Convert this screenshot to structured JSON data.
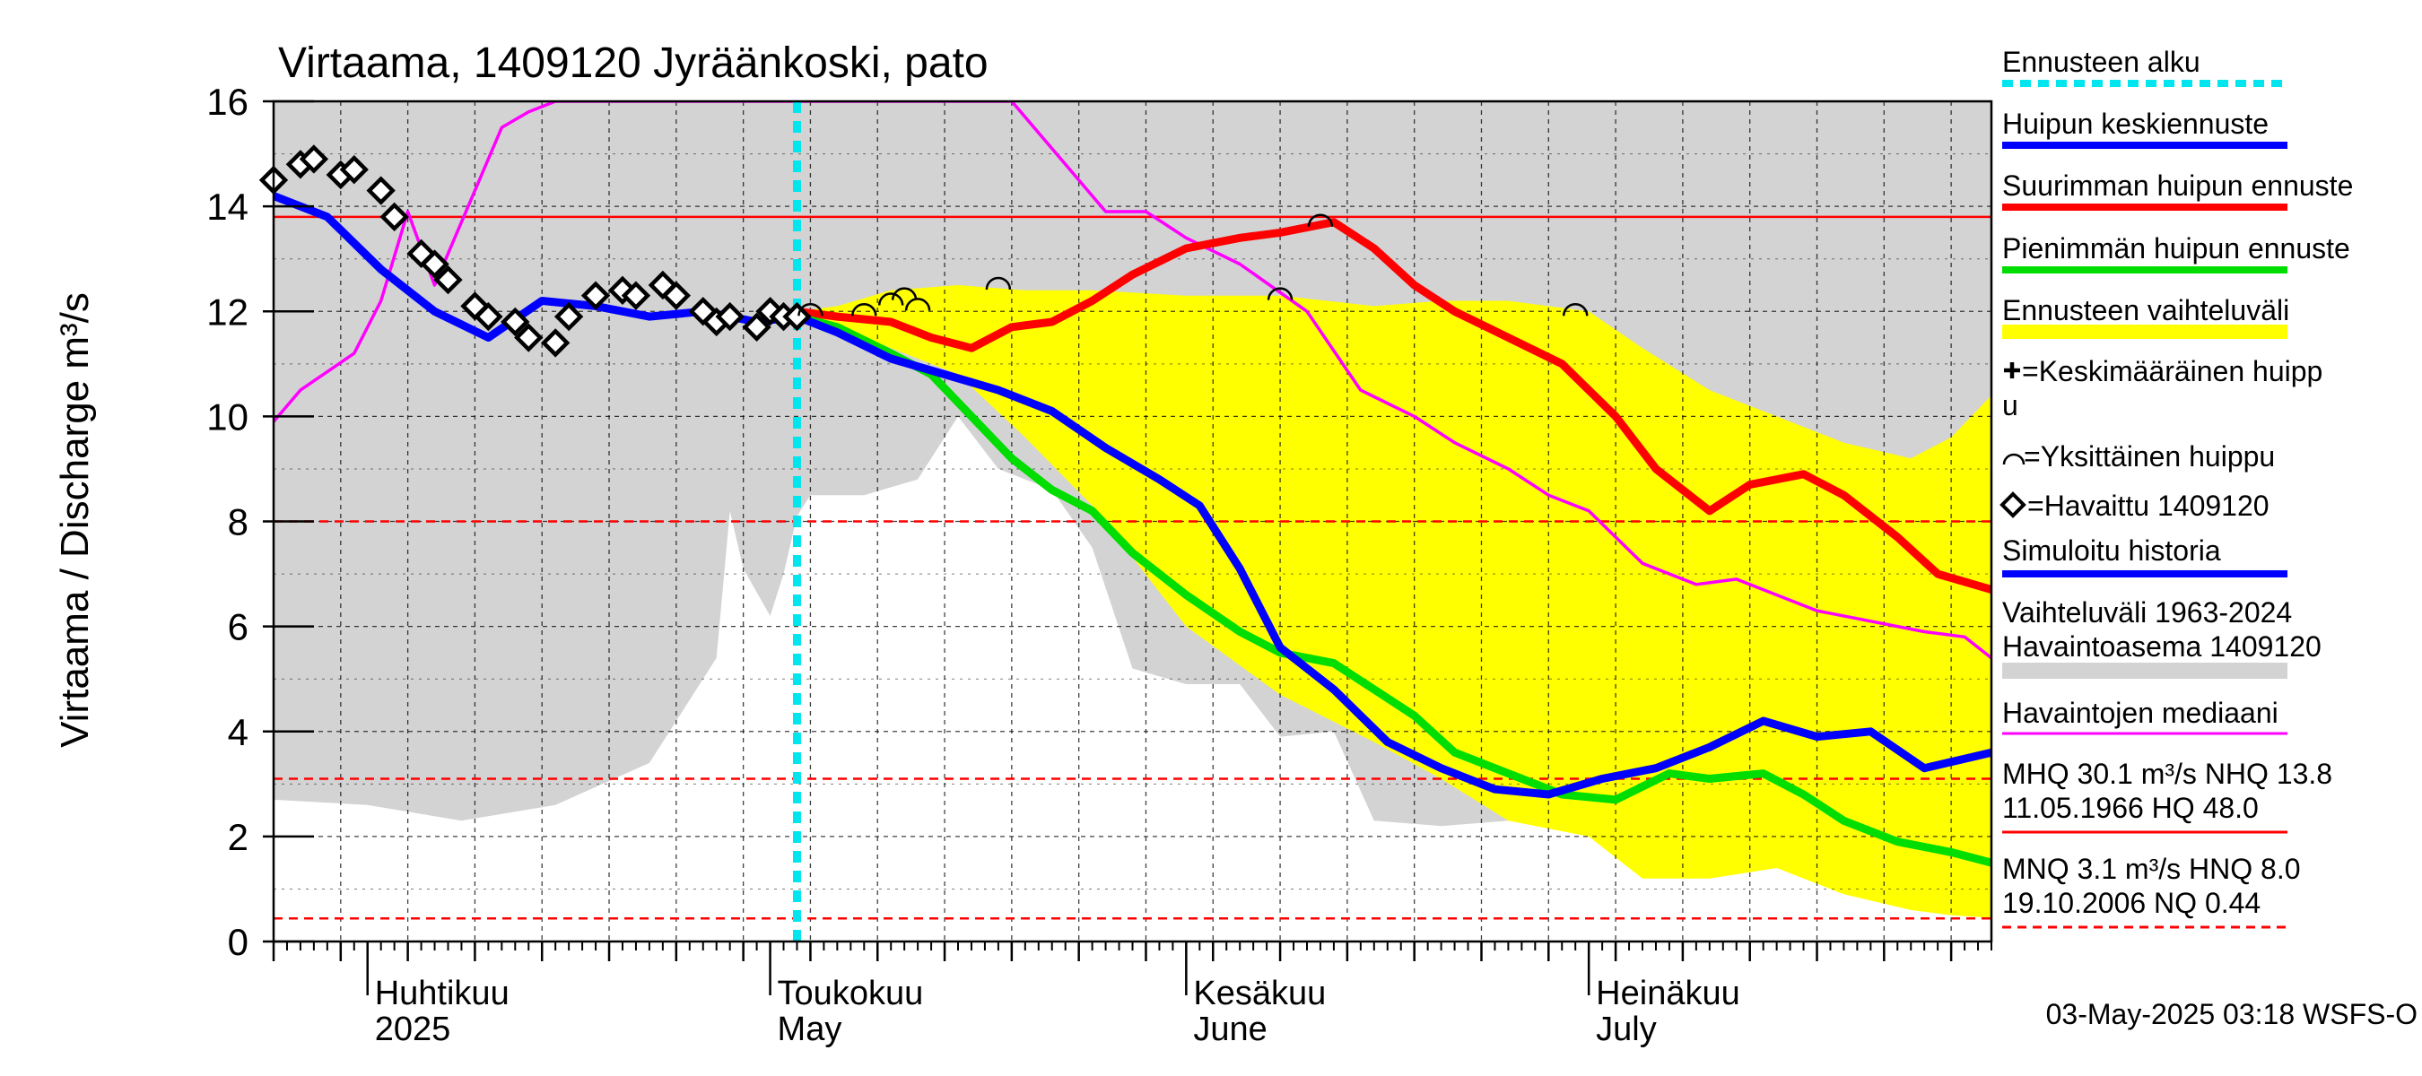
{
  "chart_data": {
    "type": "line",
    "title": "Virtaama, 1409120 Jyräänkoski, pato",
    "ylabel": "Virtaama / Discharge    m³/s",
    "ylim": [
      0,
      16
    ],
    "yticks": [
      0,
      2,
      4,
      6,
      8,
      10,
      12,
      14,
      16
    ],
    "xlim": [
      "2025-03-25",
      "2025-07-31"
    ],
    "month_labels": [
      {
        "date": "2025-04-01",
        "fi": "Huhtikuu",
        "en": "2025"
      },
      {
        "date": "2025-05-01",
        "fi": "Toukokuu",
        "en": "May"
      },
      {
        "date": "2025-06-01",
        "fi": "Kesäkuu",
        "en": "June"
      },
      {
        "date": "2025-07-01",
        "fi": "Heinäkuu",
        "en": "July"
      }
    ],
    "forecast_start": "2025-05-03",
    "reference_lines": [
      {
        "name": "NHQ",
        "value": 13.8,
        "style": "solid",
        "color": "#ff0000"
      },
      {
        "name": "HNQ",
        "value": 8.0,
        "style": "dashed",
        "color": "#ff0000"
      },
      {
        "name": "MNQ",
        "value": 3.1,
        "style": "dashed",
        "color": "#ff0000"
      },
      {
        "name": "NQ",
        "value": 0.44,
        "style": "dashed",
        "color": "#ff0000"
      }
    ],
    "series": [
      {
        "name": "Vaihteluväli 1963-2024 Havaintoasema 1409120",
        "type": "band",
        "color": "#d3d3d3",
        "x": [
          "2025-03-25",
          "2025-04-01",
          "2025-04-08",
          "2025-04-15",
          "2025-04-22",
          "2025-04-27",
          "2025-04-28",
          "2025-04-29",
          "2025-05-01",
          "2025-05-02",
          "2025-05-03",
          "2025-05-04",
          "2025-05-05",
          "2025-05-08",
          "2025-05-12",
          "2025-05-15",
          "2025-05-18",
          "2025-05-22",
          "2025-05-25",
          "2025-05-28",
          "2025-06-01",
          "2025-06-05",
          "2025-06-08",
          "2025-06-12",
          "2025-06-15",
          "2025-06-20",
          "2025-06-25",
          "2025-06-30",
          "2025-07-04",
          "2025-07-06",
          "2025-07-10",
          "2025-07-15",
          "2025-07-20",
          "2025-07-25",
          "2025-07-31"
        ],
        "low": [
          2.7,
          2.6,
          2.3,
          2.6,
          3.4,
          5.4,
          8.2,
          7.1,
          6.2,
          7.0,
          8.1,
          8.5,
          8.5,
          8.5,
          8.8,
          10.0,
          9.0,
          8.6,
          7.5,
          5.2,
          4.9,
          4.9,
          3.9,
          4.0,
          2.3,
          2.2,
          2.3,
          2.3,
          1.6,
          2.9,
          1.3,
          1.4,
          1.1,
          1.2,
          1.0
        ],
        "high": [
          16,
          16,
          16,
          16,
          16,
          16,
          16,
          16,
          16,
          16,
          16,
          16,
          16,
          16,
          16,
          16,
          16,
          16,
          16,
          16,
          16,
          16,
          16,
          16,
          16,
          16,
          16,
          16,
          16,
          16,
          16,
          16,
          16,
          16,
          16
        ]
      },
      {
        "name": "Ennusteen vaihteluväli",
        "type": "band",
        "color": "#ffff00",
        "x": [
          "2025-05-03",
          "2025-05-06",
          "2025-05-10",
          "2025-05-15",
          "2025-05-20",
          "2025-05-25",
          "2025-06-01",
          "2025-06-08",
          "2025-06-15",
          "2025-06-20",
          "2025-06-25",
          "2025-07-01",
          "2025-07-05",
          "2025-07-10",
          "2025-07-15",
          "2025-07-20",
          "2025-07-25",
          "2025-07-28",
          "2025-07-31"
        ],
        "low": [
          11.9,
          11.7,
          11.3,
          10.8,
          9.6,
          8.3,
          6.0,
          4.7,
          3.8,
          3.1,
          2.3,
          2.0,
          1.2,
          1.2,
          1.4,
          0.9,
          0.6,
          0.5,
          0.45
        ],
        "high": [
          12.0,
          12.1,
          12.4,
          12.5,
          12.4,
          12.4,
          12.3,
          12.3,
          12.1,
          12.2,
          12.2,
          12.0,
          11.3,
          10.5,
          10.0,
          9.5,
          9.2,
          9.6,
          10.4
        ]
      },
      {
        "name": "Havaintojen mediaani",
        "type": "line",
        "color": "#ff00ff",
        "x": [
          "2025-03-25",
          "2025-03-27",
          "2025-03-31",
          "2025-04-02",
          "2025-04-04",
          "2025-04-06",
          "2025-04-09",
          "2025-04-11",
          "2025-04-13",
          "2025-04-15",
          "2025-05-19",
          "2025-05-23",
          "2025-05-26",
          "2025-05-29",
          "2025-06-01",
          "2025-06-05",
          "2025-06-10",
          "2025-06-14",
          "2025-06-18",
          "2025-06-21",
          "2025-06-25",
          "2025-06-28",
          "2025-07-01",
          "2025-07-05",
          "2025-07-09",
          "2025-07-12",
          "2025-07-15",
          "2025-07-18",
          "2025-07-22",
          "2025-07-26",
          "2025-07-29",
          "2025-07-31"
        ],
        "y": [
          9.9,
          10.5,
          11.2,
          12.2,
          13.9,
          12.5,
          14.3,
          15.5,
          15.8,
          16.0,
          16.0,
          14.8,
          13.9,
          13.9,
          13.4,
          12.9,
          12.0,
          10.5,
          10.0,
          9.5,
          9.0,
          8.5,
          8.2,
          7.2,
          6.8,
          6.9,
          6.6,
          6.3,
          6.1,
          5.9,
          5.8,
          5.4
        ]
      },
      {
        "name": "Suurimman huipun ennuste",
        "type": "line",
        "color": "#ff0000",
        "x": [
          "2025-05-03",
          "2025-05-06",
          "2025-05-10",
          "2025-05-13",
          "2025-05-16",
          "2025-05-19",
          "2025-05-22",
          "2025-05-25",
          "2025-05-28",
          "2025-06-01",
          "2025-06-05",
          "2025-06-08",
          "2025-06-12",
          "2025-06-15",
          "2025-06-18",
          "2025-06-21",
          "2025-06-25",
          "2025-06-29",
          "2025-07-03",
          "2025-07-06",
          "2025-07-10",
          "2025-07-13",
          "2025-07-17",
          "2025-07-20",
          "2025-07-24",
          "2025-07-27",
          "2025-07-31"
        ],
        "y": [
          12.0,
          11.9,
          11.8,
          11.5,
          11.3,
          11.7,
          11.8,
          12.2,
          12.7,
          13.2,
          13.4,
          13.5,
          13.7,
          13.2,
          12.5,
          12.0,
          11.5,
          11.0,
          10.0,
          9.0,
          8.2,
          8.7,
          8.9,
          8.5,
          7.7,
          7.0,
          6.7
        ]
      },
      {
        "name": "Pienimmän huipun ennuste",
        "type": "line",
        "color": "#00dd00",
        "x": [
          "2025-05-03",
          "2025-05-06",
          "2025-05-10",
          "2025-05-13",
          "2025-05-16",
          "2025-05-19",
          "2025-05-22",
          "2025-05-25",
          "2025-05-28",
          "2025-06-01",
          "2025-06-05",
          "2025-06-08",
          "2025-06-12",
          "2025-06-15",
          "2025-06-18",
          "2025-06-21",
          "2025-06-25",
          "2025-06-29",
          "2025-07-03",
          "2025-07-07",
          "2025-07-10",
          "2025-07-14",
          "2025-07-17",
          "2025-07-20",
          "2025-07-24",
          "2025-07-28",
          "2025-07-31"
        ],
        "y": [
          11.9,
          11.7,
          11.2,
          10.8,
          10.0,
          9.2,
          8.6,
          8.2,
          7.4,
          6.6,
          5.9,
          5.5,
          5.3,
          4.8,
          4.3,
          3.6,
          3.2,
          2.8,
          2.7,
          3.2,
          3.1,
          3.2,
          2.8,
          2.3,
          1.9,
          1.7,
          1.5
        ]
      },
      {
        "name": "Huipun keskiennuste",
        "type": "line",
        "color": "#0000ff",
        "x": [
          "2025-03-25",
          "2025-03-29",
          "2025-04-02",
          "2025-04-06",
          "2025-04-10",
          "2025-04-14",
          "2025-04-18",
          "2025-04-22",
          "2025-04-26",
          "2025-04-30",
          "2025-05-03",
          "2025-05-06",
          "2025-05-10",
          "2025-05-14",
          "2025-05-18",
          "2025-05-22",
          "2025-05-26",
          "2025-05-30",
          "2025-06-02",
          "2025-06-05",
          "2025-06-08",
          "2025-06-12",
          "2025-06-16",
          "2025-06-20",
          "2025-06-24",
          "2025-06-28",
          "2025-07-02",
          "2025-07-06",
          "2025-07-10",
          "2025-07-14",
          "2025-07-18",
          "2025-07-22",
          "2025-07-26",
          "2025-07-31"
        ],
        "y": [
          14.2,
          13.8,
          12.8,
          12.0,
          11.5,
          12.2,
          12.1,
          11.9,
          12.0,
          11.8,
          11.9,
          11.6,
          11.1,
          10.8,
          10.5,
          10.1,
          9.4,
          8.8,
          8.3,
          7.1,
          5.6,
          4.8,
          3.8,
          3.3,
          2.9,
          2.8,
          3.1,
          3.3,
          3.7,
          4.2,
          3.9,
          4.0,
          3.3,
          3.6
        ]
      },
      {
        "name": "Havaittu 1409120",
        "type": "marker",
        "color": "#000000",
        "x": [
          "2025-03-25",
          "2025-03-27",
          "2025-03-28",
          "2025-03-30",
          "2025-03-31",
          "2025-04-02",
          "2025-04-03",
          "2025-04-05",
          "2025-04-06",
          "2025-04-07",
          "2025-04-09",
          "2025-04-10",
          "2025-04-12",
          "2025-04-13",
          "2025-04-15",
          "2025-04-16",
          "2025-04-18",
          "2025-04-20",
          "2025-04-21",
          "2025-04-23",
          "2025-04-24",
          "2025-04-26",
          "2025-04-27",
          "2025-04-28",
          "2025-04-30",
          "2025-05-01",
          "2025-05-02",
          "2025-05-03"
        ],
        "y": [
          14.5,
          14.8,
          14.9,
          14.6,
          14.7,
          14.3,
          13.8,
          13.1,
          12.9,
          12.6,
          12.1,
          11.9,
          11.8,
          11.5,
          11.4,
          11.9,
          12.3,
          12.4,
          12.3,
          12.5,
          12.3,
          12.0,
          11.8,
          11.9,
          11.7,
          12.0,
          11.9,
          11.9
        ]
      },
      {
        "name": "Yksittäinen huippu",
        "type": "marker",
        "color": "#000000",
        "x": [
          "2025-05-04",
          "2025-05-08",
          "2025-05-10",
          "2025-05-11",
          "2025-05-12",
          "2025-05-18",
          "2025-06-08",
          "2025-06-11",
          "2025-06-30"
        ],
        "y": [
          12.0,
          12.0,
          12.2,
          12.3,
          12.1,
          12.5,
          12.3,
          13.7,
          12.0
        ]
      }
    ],
    "legend": [
      {
        "label": "Ennusteen alku",
        "color": "#00e5ee",
        "style": "dotted"
      },
      {
        "label": "Huipun keskiennuste",
        "color": "#0000ff",
        "style": "line"
      },
      {
        "label": "Suurimman huipun ennuste",
        "color": "#ff0000",
        "style": "line"
      },
      {
        "label": "Pienimmän huipun ennuste",
        "color": "#00dd00",
        "style": "line"
      },
      {
        "label": "Ennusteen vaihteluväli",
        "color": "#ffff00",
        "style": "band"
      },
      {
        "label": "=Keskimääräinen huipp",
        "label2": "u",
        "style": "plus"
      },
      {
        "label": "=Yksittäinen huippu",
        "style": "arc"
      },
      {
        "label": "=Havaittu 1409120",
        "style": "diamond"
      },
      {
        "label": "Simuloitu historia",
        "color": "#0000ff",
        "style": "line"
      },
      {
        "label": "Vaihteluväli 1963-2024",
        "label2": " Havaintoasema 1409120",
        "color": "#d3d3d3",
        "style": "band"
      },
      {
        "label": "Havaintojen mediaani",
        "color": "#ff00ff",
        "style": "line"
      }
    ],
    "stats": [
      {
        "line1": "MHQ 30.1 m³/s NHQ 13.8",
        "line2": "11.05.1966 HQ 48.0",
        "style": "solid"
      },
      {
        "line1": "MNQ  3.1 m³/s HNQ  8.0",
        "line2": "19.10.2006 NQ 0.44",
        "style": "dashed"
      }
    ],
    "footer": "03-May-2025 03:18 WSFS-O",
    "grid": true,
    "legend_placement": "right"
  }
}
